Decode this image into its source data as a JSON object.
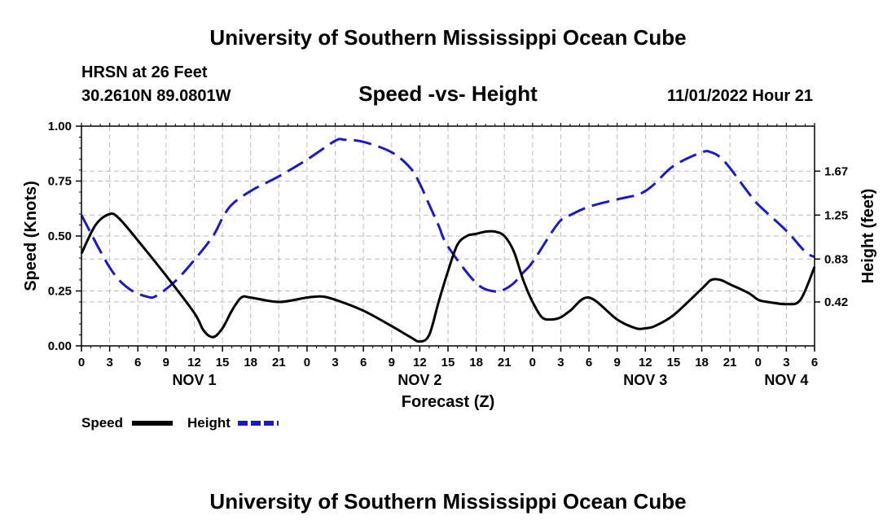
{
  "header": {
    "title": "University of Southern Mississippi Ocean Cube",
    "station": "HRSN at 26 Feet",
    "coords": "30.2610N  89.0801W",
    "date_hour": "11/01/2022 Hour 21",
    "footer_title": "University of Southern Mississippi Ocean Cube"
  },
  "colors": {
    "speed": "#000000",
    "height": "#1a1ac8",
    "grid": "#bbbbbb"
  },
  "chart_data": {
    "type": "line",
    "title": "Speed -vs- Height",
    "xlabel": "Forecast (Z)",
    "ylabel": "Speed (Knots)",
    "ylabel_right": "Height (feet)",
    "xlim": [
      0,
      78
    ],
    "ylim": [
      0,
      1
    ],
    "ylim_right": [
      0.0,
      2.1
    ],
    "x_ticks": [
      0,
      3,
      6,
      9,
      12,
      15,
      18,
      21,
      24,
      27,
      30,
      33,
      36,
      39,
      42,
      45,
      48,
      51,
      54,
      57,
      60,
      63,
      66,
      69,
      72,
      75,
      78
    ],
    "x_tick_labels": [
      "0",
      "3",
      "6",
      "9",
      "12",
      "15",
      "18",
      "21",
      "0",
      "3",
      "6",
      "9",
      "12",
      "15",
      "18",
      "21",
      "0",
      "3",
      "6",
      "9",
      "12",
      "15",
      "18",
      "21",
      "0",
      "3",
      "6"
    ],
    "day_labels": [
      {
        "x": 12,
        "label": "NOV 1"
      },
      {
        "x": 36,
        "label": "NOV 2"
      },
      {
        "x": 60,
        "label": "NOV 3"
      },
      {
        "x": 75,
        "label": "NOV 4"
      }
    ],
    "y_ticks": [
      0.0,
      0.25,
      0.5,
      0.75,
      1.0
    ],
    "y_tick_labels": [
      "0.00",
      "0.25",
      "0.50",
      "0.75",
      "1.00"
    ],
    "y_ticks_right": [
      0.42,
      0.83,
      1.25,
      1.67
    ],
    "y_tick_labels_right": [
      "0.42",
      "0.83",
      "1.25",
      "1.67"
    ],
    "grid": true,
    "series": [
      {
        "name": "Speed",
        "axis": "left",
        "style": "solid",
        "x": [
          0,
          1.5,
          3,
          4,
          6,
          9,
          12,
          13,
          14,
          15,
          16,
          17,
          18,
          21,
          24,
          25.5,
          27,
          30,
          33,
          35,
          36,
          37,
          38,
          39,
          40,
          41,
          42,
          43,
          44,
          45,
          46,
          47,
          48,
          49,
          50,
          51,
          52,
          54,
          57,
          59,
          60,
          61,
          63,
          66,
          67,
          68,
          69,
          71,
          72,
          73,
          75,
          76.5,
          78
        ],
        "values": [
          0.42,
          0.55,
          0.6,
          0.58,
          0.48,
          0.32,
          0.15,
          0.07,
          0.04,
          0.08,
          0.16,
          0.22,
          0.22,
          0.2,
          0.22,
          0.225,
          0.21,
          0.16,
          0.09,
          0.04,
          0.02,
          0.05,
          0.2,
          0.34,
          0.46,
          0.5,
          0.51,
          0.52,
          0.52,
          0.5,
          0.43,
          0.3,
          0.2,
          0.13,
          0.12,
          0.13,
          0.16,
          0.22,
          0.12,
          0.08,
          0.08,
          0.09,
          0.14,
          0.26,
          0.3,
          0.3,
          0.28,
          0.24,
          0.21,
          0.2,
          0.19,
          0.21,
          0.36
        ]
      },
      {
        "name": "Height",
        "axis": "right",
        "style": "dashed",
        "x": [
          0,
          3,
          5,
          7,
          8,
          10,
          12,
          14,
          15,
          16,
          18,
          21,
          24,
          27,
          28,
          30,
          33,
          35,
          36,
          37,
          38,
          39,
          42,
          44,
          45,
          46,
          47,
          48,
          50,
          51,
          52,
          54,
          57,
          59,
          60,
          61,
          63,
          66,
          67,
          68,
          69,
          70,
          71,
          72,
          75,
          77,
          78
        ],
        "values": [
          1.25,
          0.75,
          0.55,
          0.47,
          0.48,
          0.62,
          0.82,
          1.05,
          1.22,
          1.35,
          1.48,
          1.62,
          1.78,
          1.96,
          1.97,
          1.95,
          1.85,
          1.7,
          1.55,
          1.35,
          1.15,
          0.95,
          0.6,
          0.52,
          0.54,
          0.6,
          0.7,
          0.8,
          1.08,
          1.2,
          1.25,
          1.33,
          1.4,
          1.44,
          1.48,
          1.55,
          1.72,
          1.85,
          1.85,
          1.8,
          1.7,
          1.58,
          1.46,
          1.35,
          1.1,
          0.9,
          0.85
        ]
      }
    ],
    "legend": [
      {
        "label": "Speed",
        "style": "solid"
      },
      {
        "label": "Height",
        "style": "dashed"
      }
    ]
  }
}
